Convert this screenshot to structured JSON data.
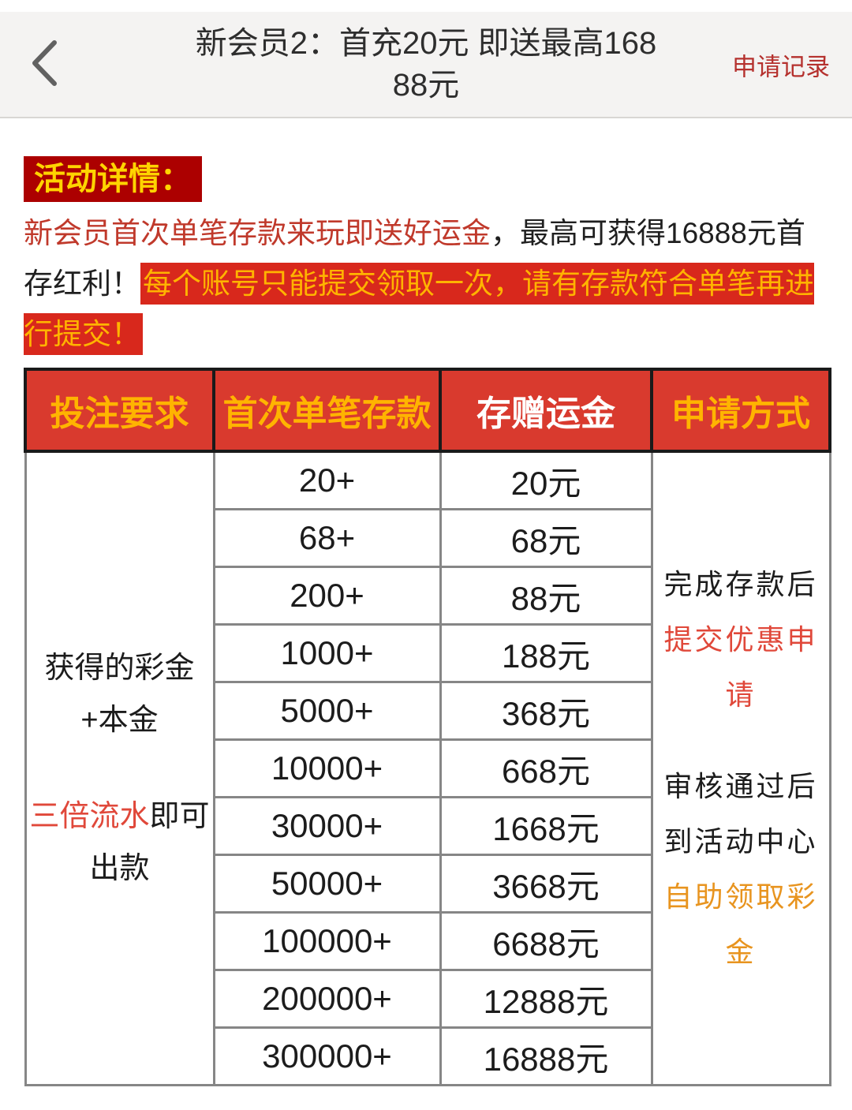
{
  "header": {
    "back_icon": "chevron-left",
    "title": "新会员2：首充20元 即送最高16888元",
    "records_link": "申请记录"
  },
  "promo": {
    "details_label": "活动详情：",
    "intro_red": "新会员首次单笔存款来玩即送好运金",
    "intro_black": "，最高可获得16888元首存红利！",
    "warning_highlight": "每个账号只能提交领取一次，请有存款符合单笔再进行提交！"
  },
  "table": {
    "headers": [
      "投注要求",
      "首次单笔存款",
      "存赠运金",
      "申请方式"
    ],
    "requirement": {
      "main": "获得的彩金\n+本金",
      "turnover_red": "三倍流水",
      "turnover_black": "即可出款"
    },
    "rows": [
      {
        "deposit": "20+",
        "bonus": "20元"
      },
      {
        "deposit": "68+",
        "bonus": "68元"
      },
      {
        "deposit": "200+",
        "bonus": "88元"
      },
      {
        "deposit": "1000+",
        "bonus": "188元"
      },
      {
        "deposit": "5000+",
        "bonus": "368元"
      },
      {
        "deposit": "10000+",
        "bonus": "668元"
      },
      {
        "deposit": "30000+",
        "bonus": "1668元"
      },
      {
        "deposit": "50000+",
        "bonus": "3668元"
      },
      {
        "deposit": "100000+",
        "bonus": "6688元"
      },
      {
        "deposit": "200000+",
        "bonus": "12888元"
      },
      {
        "deposit": "300000+",
        "bonus": "16888元"
      }
    ],
    "apply_method": [
      {
        "text": "完成存款后",
        "color": "black"
      },
      {
        "text": "提交优惠申请",
        "color": "red"
      },
      {
        "text": "审核通过后\n到活动中心",
        "color": "black",
        "gap_before": true
      },
      {
        "text": "自助领取彩金",
        "color": "orange"
      }
    ]
  },
  "colors": {
    "topbar_bg": "#f4f3f2",
    "records_link_red": "#b5312e",
    "tag_bg": "#ac0000",
    "tag_text_yellow": "#ffd400",
    "body_text_red": "#c0392b",
    "highlight_bg": "#d8281c",
    "highlight_text_gold": "#ffb400",
    "table_header_bg": "#d93a2e",
    "table_header_gold": "#ffb400",
    "table_header_white": "#ffffff",
    "turnover_red": "#e0483a",
    "self_claim_orange": "#e8941f",
    "body_border_gray": "#868686",
    "header_border_black": "#1a1a1a"
  }
}
